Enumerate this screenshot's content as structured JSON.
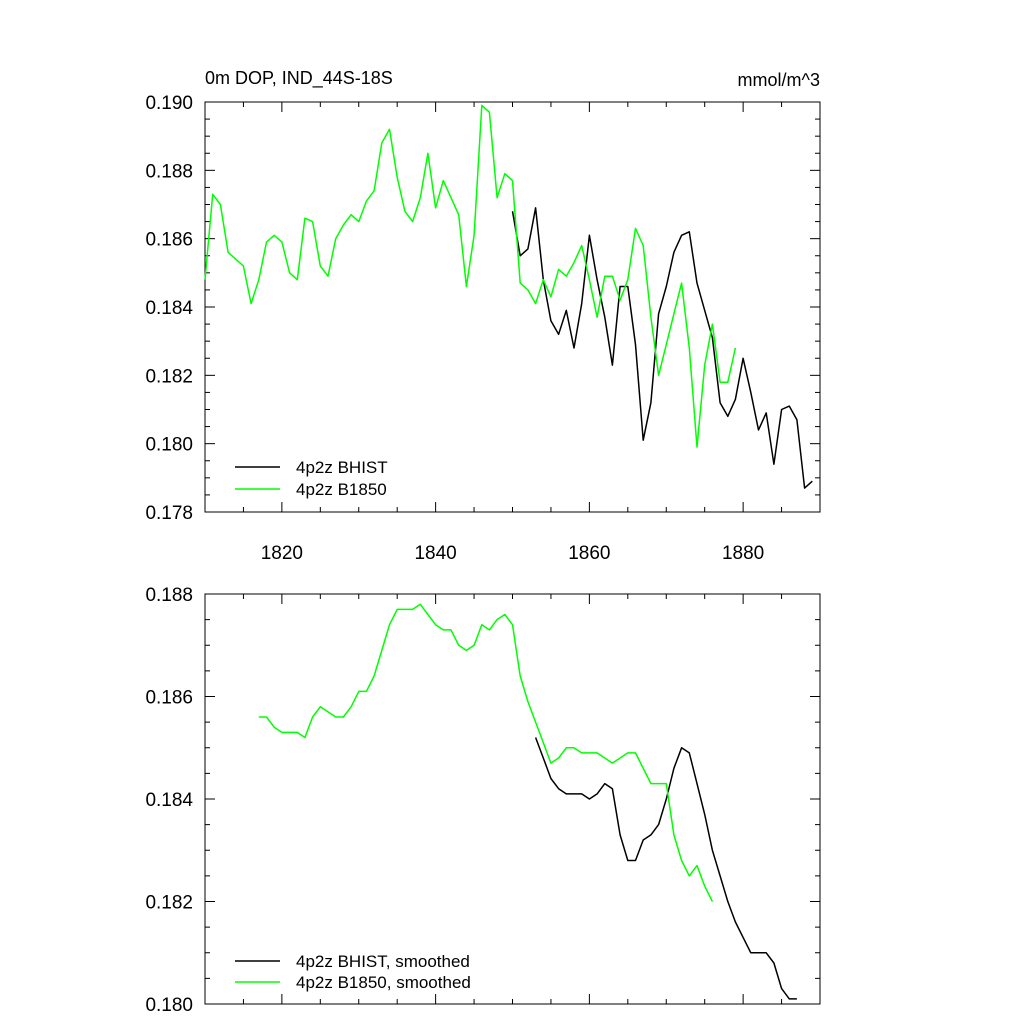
{
  "chart_data": [
    {
      "type": "line",
      "title": "0m DOP, IND_44S-18S",
      "units": "mmol/m^3",
      "xlim": [
        1810,
        1890
      ],
      "ylim": [
        0.178,
        0.19
      ],
      "x_ticks": [
        1820,
        1840,
        1860,
        1880
      ],
      "y_ticks": [
        0.178,
        0.18,
        0.182,
        0.184,
        0.186,
        0.188,
        0.19
      ],
      "y_tick_labels": [
        "0.178",
        "0.180",
        "0.182",
        "0.184",
        "0.186",
        "0.188",
        "0.190"
      ],
      "legend": "bottom-left",
      "series": [
        {
          "name": "4p2z BHIST",
          "color": "#000000",
          "x": [
            1850,
            1851,
            1852,
            1853,
            1854,
            1855,
            1856,
            1857,
            1858,
            1859,
            1860,
            1861,
            1862,
            1863,
            1864,
            1865,
            1866,
            1867,
            1868,
            1869,
            1870,
            1871,
            1872,
            1873,
            1874,
            1875,
            1876,
            1877,
            1878,
            1879,
            1880,
            1881,
            1882,
            1883,
            1884,
            1885,
            1886,
            1887,
            1888,
            1889
          ],
          "y": [
            0.1868,
            0.1855,
            0.1857,
            0.1869,
            0.1848,
            0.1836,
            0.1832,
            0.1839,
            0.1828,
            0.1841,
            0.1861,
            0.1848,
            0.1837,
            0.1823,
            0.1846,
            0.1846,
            0.1829,
            0.1801,
            0.1812,
            0.1838,
            0.1846,
            0.1856,
            0.1861,
            0.1862,
            0.1847,
            0.1839,
            0.1831,
            0.1812,
            0.1808,
            0.1813,
            0.1825,
            0.1815,
            0.1804,
            0.1809,
            0.1794,
            0.181,
            0.1811,
            0.1807,
            0.1787,
            0.1789
          ]
        },
        {
          "name": "4p2z B1850",
          "color": "#00ff00",
          "x": [
            1810,
            1811,
            1812,
            1813,
            1814,
            1815,
            1816,
            1817,
            1818,
            1819,
            1820,
            1821,
            1822,
            1823,
            1824,
            1825,
            1826,
            1827,
            1828,
            1829,
            1830,
            1831,
            1832,
            1833,
            1834,
            1835,
            1836,
            1837,
            1838,
            1839,
            1840,
            1841,
            1842,
            1843,
            1844,
            1845,
            1846,
            1847,
            1848,
            1849,
            1850,
            1851,
            1852,
            1853,
            1854,
            1855,
            1856,
            1857,
            1858,
            1859,
            1860,
            1861,
            1862,
            1863,
            1864,
            1865,
            1866,
            1867,
            1868,
            1869,
            1870,
            1871,
            1872,
            1873,
            1874,
            1875,
            1876,
            1877,
            1878,
            1879
          ],
          "y": [
            0.1848,
            0.1873,
            0.187,
            0.1856,
            0.1854,
            0.1852,
            0.1841,
            0.1848,
            0.1859,
            0.1861,
            0.1859,
            0.185,
            0.1848,
            0.1866,
            0.1865,
            0.1852,
            0.1849,
            0.186,
            0.1864,
            0.1867,
            0.1865,
            0.1871,
            0.1874,
            0.1888,
            0.1892,
            0.1878,
            0.1868,
            0.1865,
            0.1872,
            0.1885,
            0.1869,
            0.1877,
            0.1872,
            0.1867,
            0.1846,
            0.1861,
            0.1899,
            0.1897,
            0.1872,
            0.1879,
            0.1877,
            0.1847,
            0.1845,
            0.1841,
            0.1848,
            0.1843,
            0.1851,
            0.1849,
            0.1853,
            0.1858,
            0.1848,
            0.1837,
            0.1849,
            0.1849,
            0.1842,
            0.1848,
            0.1863,
            0.1858,
            0.1837,
            0.182,
            0.1829,
            0.1838,
            0.1847,
            0.1828,
            0.1799,
            0.1823,
            0.1835,
            0.1818,
            0.1818,
            0.1828
          ]
        }
      ]
    },
    {
      "type": "line",
      "xlim": [
        1810,
        1890
      ],
      "ylim": [
        0.18,
        0.188
      ],
      "x_ticks": [
        1820,
        1840,
        1860,
        1880
      ],
      "y_ticks": [
        0.18,
        0.182,
        0.184,
        0.186,
        0.188
      ],
      "y_tick_labels": [
        "0.180",
        "0.182",
        "0.184",
        "0.186",
        "0.188"
      ],
      "legend": "bottom-left",
      "series": [
        {
          "name": "4p2z BHIST, smoothed",
          "color": "#000000",
          "x": [
            1853,
            1854,
            1855,
            1856,
            1857,
            1858,
            1859,
            1860,
            1861,
            1862,
            1863,
            1864,
            1865,
            1866,
            1867,
            1868,
            1869,
            1870,
            1871,
            1872,
            1873,
            1874,
            1875,
            1876,
            1877,
            1878,
            1879,
            1880,
            1881,
            1882,
            1883,
            1884,
            1885,
            1886,
            1887
          ],
          "y": [
            0.1852,
            0.1848,
            0.1844,
            0.1842,
            0.1841,
            0.1841,
            0.1841,
            0.184,
            0.1841,
            0.1843,
            0.1842,
            0.1833,
            0.1828,
            0.1828,
            0.1832,
            0.1833,
            0.1835,
            0.184,
            0.1846,
            0.185,
            0.1849,
            0.1843,
            0.1837,
            0.183,
            0.1825,
            0.182,
            0.1816,
            0.1813,
            0.181,
            0.181,
            0.181,
            0.1808,
            0.1803,
            0.1801,
            0.1801
          ]
        },
        {
          "name": "4p2z B1850, smoothed",
          "color": "#00ff00",
          "x": [
            1817,
            1818,
            1819,
            1820,
            1821,
            1822,
            1823,
            1824,
            1825,
            1826,
            1827,
            1828,
            1829,
            1830,
            1831,
            1832,
            1833,
            1834,
            1835,
            1836,
            1837,
            1838,
            1839,
            1840,
            1841,
            1842,
            1843,
            1844,
            1845,
            1846,
            1847,
            1848,
            1849,
            1850,
            1851,
            1852,
            1853,
            1854,
            1855,
            1856,
            1857,
            1858,
            1859,
            1860,
            1861,
            1862,
            1863,
            1864,
            1865,
            1866,
            1867,
            1868,
            1869,
            1870,
            1871,
            1872,
            1873,
            1874,
            1875,
            1876
          ],
          "y": [
            0.1856,
            0.1856,
            0.1854,
            0.1853,
            0.1853,
            0.1853,
            0.1852,
            0.1856,
            0.1858,
            0.1857,
            0.1856,
            0.1856,
            0.1858,
            0.1861,
            0.1861,
            0.1864,
            0.1869,
            0.1874,
            0.1877,
            0.1877,
            0.1877,
            0.1878,
            0.1876,
            0.1874,
            0.1873,
            0.1873,
            0.187,
            0.1869,
            0.187,
            0.1874,
            0.1873,
            0.1875,
            0.1876,
            0.1874,
            0.1864,
            0.1859,
            0.1855,
            0.1851,
            0.1847,
            0.1848,
            0.185,
            0.185,
            0.1849,
            0.1849,
            0.1849,
            0.1848,
            0.1847,
            0.1848,
            0.1849,
            0.1849,
            0.1846,
            0.1843,
            0.1843,
            0.1843,
            0.1833,
            0.1828,
            0.1825,
            0.1827,
            0.1823,
            0.182
          ]
        }
      ]
    }
  ]
}
